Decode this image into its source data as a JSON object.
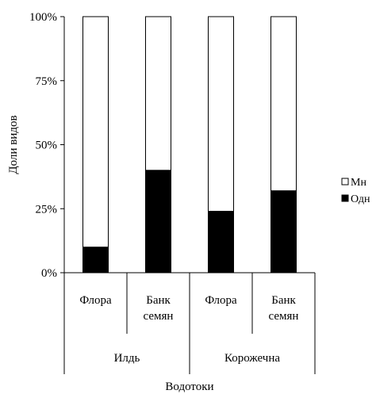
{
  "chart_data": {
    "type": "bar",
    "stacked": true,
    "normalized": true,
    "title": "",
    "xlabel": "Водотоки",
    "ylabel": "Доли видов",
    "ylim": [
      0,
      100
    ],
    "y_ticks": [
      "0%",
      "25%",
      "50%",
      "75%",
      "100%"
    ],
    "categories": [
      {
        "label_lines": [
          "Флора"
        ],
        "group": "Илдь"
      },
      {
        "label_lines": [
          "Банк",
          "семян"
        ],
        "group": "Илдь"
      },
      {
        "label_lines": [
          "Флора"
        ],
        "group": "Корожечна"
      },
      {
        "label_lines": [
          "Банк",
          "семян"
        ],
        "group": "Корожечна"
      }
    ],
    "groups": [
      "Илдь",
      "Корожечна"
    ],
    "series": [
      {
        "name": "Одн",
        "color": "#000000",
        "values": [
          10,
          40,
          24,
          32
        ]
      },
      {
        "name": "Мн",
        "color": "#ffffff",
        "values": [
          90,
          60,
          76,
          68
        ]
      }
    ],
    "legend": {
      "placement": "right",
      "order": [
        "Мн",
        "Одн"
      ]
    },
    "grid": false
  }
}
